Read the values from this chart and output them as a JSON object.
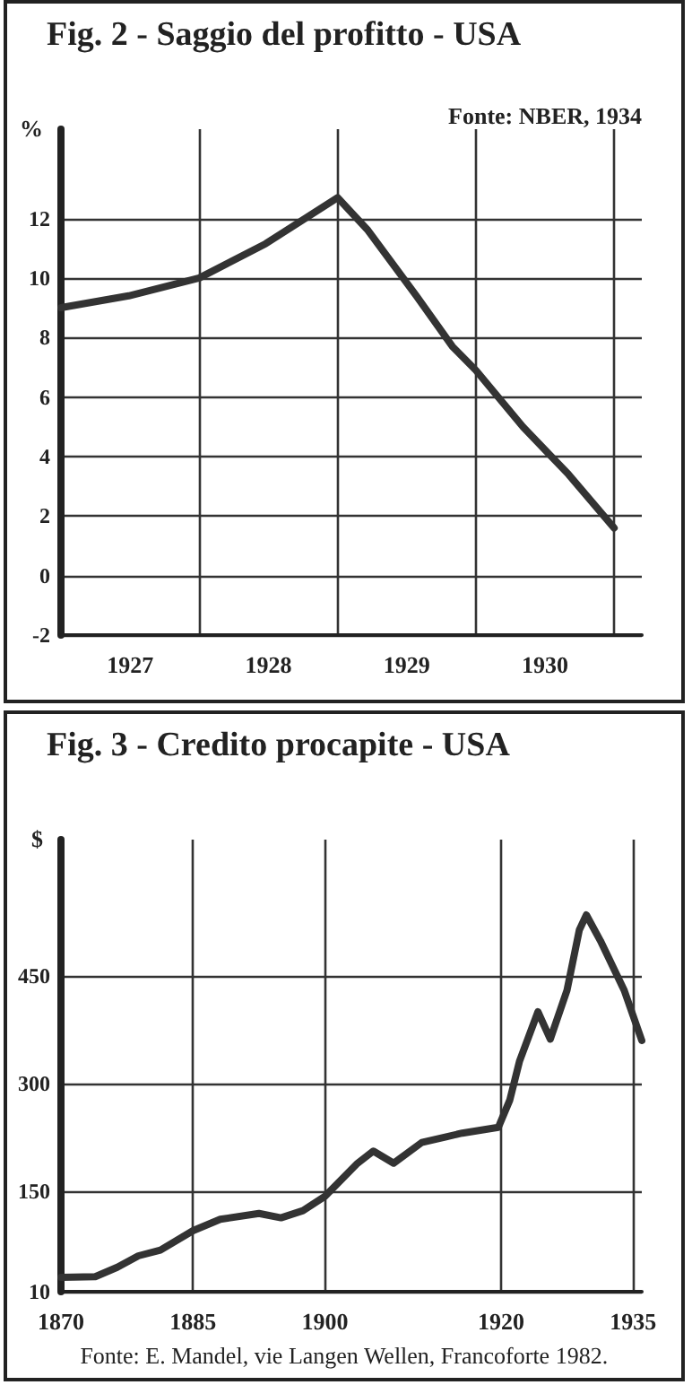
{
  "chart_data": [
    {
      "type": "line",
      "title": "Fig. 2 - Saggio del profitto - USA",
      "ylabel": "%",
      "annotations": [
        "Fonte: NBER, 1934"
      ],
      "x": [
        1927,
        1927.49,
        1928,
        1928.48,
        1929,
        1929.22,
        1929.57,
        1929.83,
        1930,
        1930.34,
        1930.67,
        1931
      ],
      "series": [
        {
          "color": "#333333",
          "values": [
            9.0,
            9.4,
            10.0,
            11.15,
            12.7,
            11.6,
            9.4,
            7.7,
            6.9,
            5.0,
            3.4,
            1.6
          ]
        }
      ],
      "xlim": [
        1927,
        1931.2
      ],
      "xticks": [
        {
          "value": 1927,
          "label": null
        },
        {
          "value": 1927.5,
          "label": "1927"
        },
        {
          "value": 1928,
          "label": null
        },
        {
          "value": 1928.5,
          "label": "1928"
        },
        {
          "value": 1929,
          "label": null
        },
        {
          "value": 1929.5,
          "label": "1929"
        },
        {
          "value": 1930,
          "label": null
        },
        {
          "value": 1930.5,
          "label": "1930"
        },
        {
          "value": 1931,
          "label": null
        }
      ],
      "ylim": [
        -2,
        15
      ],
      "yticks": [
        -2,
        0,
        2,
        4,
        6,
        8,
        10,
        12
      ],
      "grid": true,
      "marker": "none",
      "line_style": "solid"
    },
    {
      "type": "line",
      "title": "Fig. 3 - Credito procapite - USA",
      "ylabel": "$",
      "annotations": [
        "Fonte: E. Mandel, vie Langen Wellen, Francoforte 1982."
      ],
      "x": [
        1870,
        1873.9,
        1876.4,
        1878.8,
        1881.3,
        1885,
        1888.1,
        1892.5,
        1895,
        1897.5,
        1900,
        1903.7,
        1905.5,
        1907.8,
        1911,
        1915.6,
        1919.7,
        1921,
        1922.1,
        1924.2,
        1925.6,
        1927.5,
        1928.9,
        1929.7,
        1931.3,
        1934,
        1936
      ],
      "series": [
        {
          "color": "#333333",
          "values": [
            30,
            31,
            44,
            60,
            68,
            95,
            111,
            119,
            113,
            123,
            143,
            189,
            206,
            189,
            218,
            231,
            239,
            277,
            331,
            400,
            362,
            430,
            514,
            535,
            499,
            430,
            360
          ]
        }
      ],
      "xlim": [
        1870,
        1936
      ],
      "xticks": [
        1870,
        1885,
        1900,
        1920,
        1935
      ],
      "ylim": [
        10,
        640
      ],
      "yticks": [
        10,
        150,
        300,
        450
      ],
      "grid": true,
      "marker": "none",
      "line_style": "solid"
    }
  ]
}
